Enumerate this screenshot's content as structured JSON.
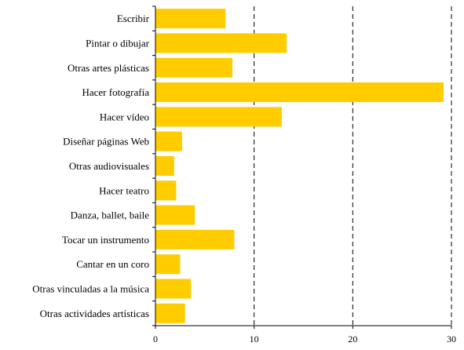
{
  "chart_data": {
    "type": "bar",
    "orientation": "horizontal",
    "categories": [
      "Escribir",
      "Pintar o dibujar",
      "Otras artes plásticas",
      "Hacer fotografía",
      "Hacer  vídeo",
      "Diseñar páginas  Web",
      "Otras audiovisuales",
      "Hacer teatro",
      "Danza, ballet,  baile",
      "Tocar un instrumento",
      "Cantar en un coro",
      "Otras vinculadas a la música",
      "Otras actividades artísticas"
    ],
    "values": [
      7.1,
      13.3,
      7.8,
      29.2,
      12.8,
      2.7,
      1.9,
      2.1,
      4.0,
      8.0,
      2.5,
      3.6,
      3.0
    ],
    "xlim": [
      0,
      30
    ],
    "xticks": [
      0,
      10,
      20,
      30
    ],
    "grid": "vertical dashed",
    "bar_color": "#FFCC00",
    "title": "",
    "xlabel": "",
    "ylabel": ""
  }
}
